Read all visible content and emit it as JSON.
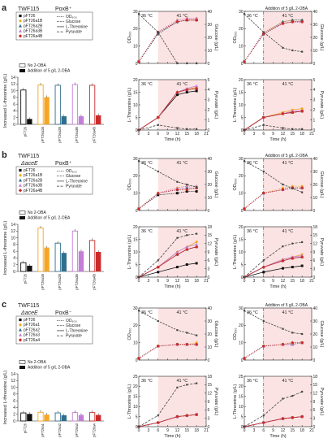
{
  "chart_data": [
    {
      "panel": "a",
      "strain_line1": "TWF115",
      "strain_line2": "",
      "phenotype": "PoxB⁺",
      "legend": {
        "strains": [
          "pFT26",
          "pFT26a1B",
          "pFT26a2B",
          "pFT26a3B",
          "pFT26a4B"
        ],
        "curves": [
          "OD600",
          "Glucose",
          "L-Threonine",
          "Pyruvate"
        ]
      },
      "bar_chart": {
        "type": "bar",
        "ylabel": "Increased L-threonine (g/L)",
        "ylim": [
          0,
          14
        ],
        "yticks": [
          0,
          2,
          4,
          6,
          8,
          10,
          12,
          14
        ],
        "legend": [
          "No 2-OBA",
          "Addition of 5 g/L 2-OBA"
        ],
        "categories": [
          "pFT26",
          "pFT26a1B",
          "pFT26a2B",
          "pFT26a3B",
          "pFT26a4B"
        ],
        "series": [
          {
            "name": "No 2-OBA",
            "values": [
              10.2,
              11.7,
              11.6,
              11.8,
              11.6
            ]
          },
          {
            "name": "Addition of 5 g/L 2-OBA",
            "values": [
              1.6,
              8.1,
              2.4,
              2.4,
              2.7
            ]
          }
        ]
      },
      "time_course": {
        "x": [
          0,
          6,
          12,
          15,
          18
        ],
        "xlim": [
          0,
          21
        ],
        "xticks": [
          0,
          3,
          6,
          9,
          12,
          15,
          18,
          21
        ],
        "xlabel": "Time (h)",
        "temp_labels": [
          "36 °C",
          "41 °C"
        ],
        "shift_time": 6,
        "annotation": "Addition of 5 g/L 2-OBA",
        "top": {
          "left_ylabel": "OD600",
          "left_ylim": [
            0,
            30
          ],
          "left_ticks": [
            0,
            10,
            20,
            30
          ],
          "right_ylabel": "Glucose (g/L)",
          "right_ylim": [
            0,
            40
          ],
          "right_ticks": [
            0,
            10,
            20,
            30,
            40
          ],
          "left_panel": {
            "od": [
              [
                1,
                17,
                24,
                25,
                25
              ],
              [
                1,
                18,
                25,
                26,
                26
              ],
              [
                1,
                17,
                24,
                25,
                25
              ],
              [
                1,
                18,
                25,
                26,
                26
              ],
              [
                1,
                18,
                24,
                25,
                25
              ]
            ],
            "glucose": [
              38,
              24,
              0,
              0,
              0
            ]
          },
          "right_panel": {
            "od": [
              [
                1,
                17,
                23,
                24,
                24
              ],
              [
                1,
                18,
                24,
                25,
                25
              ],
              [
                1,
                17,
                24,
                25,
                25
              ],
              [
                1,
                18,
                23,
                24,
                24
              ],
              [
                1,
                17,
                23,
                24,
                24
              ]
            ],
            "glucose": [
              38,
              24,
              12,
              10,
              9
            ]
          }
        },
        "bottom": {
          "left_ylabel": "L-Threonine (g/L)",
          "left_ylim": [
            0,
            20
          ],
          "left_ticks": [
            0,
            5,
            10,
            15,
            20
          ],
          "right_ylabel": "Pyruvate (g/L)",
          "right_ylim": [
            0,
            5
          ],
          "right_ticks": [
            0,
            1,
            2,
            3,
            4,
            5
          ],
          "left_panel": {
            "thr": [
              [
                0,
                5,
                14,
                15,
                15.5
              ],
              [
                0,
                5,
                15,
                16,
                17
              ],
              [
                0,
                5,
                15,
                16,
                16.5
              ],
              [
                0,
                5,
                15,
                16.5,
                17.5
              ],
              [
                0,
                5,
                15,
                16,
                16.5
              ]
            ],
            "pyr": [
              0,
              0.5,
              0.2,
              0.1,
              0.1
            ]
          },
          "right_panel": {
            "thr": [
              [
                0,
                5,
                6.5,
                7,
                7.5
              ],
              [
                0,
                5,
                7,
                8,
                8.5
              ],
              [
                0,
                5,
                6.5,
                7,
                7.5
              ],
              [
                0,
                5,
                6.5,
                7.5,
                7.5
              ],
              [
                0,
                5,
                6.5,
                7,
                7.5
              ]
            ],
            "pyr": [
              0,
              0.5,
              0.2,
              0.1,
              0.1
            ]
          }
        }
      }
    },
    {
      "panel": "b",
      "strain_line1": "TWF115",
      "strain_line2": "ΔaceE",
      "phenotype": "PoxB⁺",
      "legend": {
        "strains": [
          "pFT26",
          "pFT26a1B",
          "pFT26a2B",
          "pFT26a3B",
          "pFT26a4B"
        ],
        "curves": [
          "OD600",
          "Glucose",
          "L-Threonine",
          "Pyruvate"
        ]
      },
      "bar_chart": {
        "type": "bar",
        "ylabel": "Increased L-threonine (g/L)",
        "ylim": [
          0,
          14
        ],
        "yticks": [
          0,
          2,
          4,
          6,
          8,
          10,
          12,
          14
        ],
        "legend": [
          "No 2-OBA",
          "Addition of 5 g/L 2-OBA"
        ],
        "categories": [
          "pFT26",
          "pFT26a1B",
          "pFT26a2B",
          "pFT26a3B",
          "pFT26a4B"
        ],
        "series": [
          {
            "name": "No 2-OBA",
            "values": [
              2.6,
              12.9,
              8.4,
              12.0,
              9.2
            ]
          },
          {
            "name": "Addition of 5 g/L 2-OBA",
            "values": [
              1.7,
              7.1,
              5.5,
              6.0,
              5.8
            ]
          }
        ]
      },
      "time_course": {
        "x": [
          0,
          6,
          12,
          15,
          18
        ],
        "xlim": [
          0,
          21
        ],
        "xticks": [
          0,
          3,
          6,
          9,
          12,
          15,
          18,
          21
        ],
        "xlabel": "Time (h)",
        "temp_labels": [
          "36 °C",
          "41 °C"
        ],
        "shift_time": 6,
        "annotation": "Addition of 5 g/L 2-OBA",
        "top": {
          "left_ylabel": "OD600",
          "left_ylim": [
            0,
            30
          ],
          "left_ticks": [
            0,
            10,
            20,
            30
          ],
          "right_ylabel": "Glucose (g/L)",
          "right_ylim": [
            0,
            40
          ],
          "right_ticks": [
            0,
            10,
            20,
            30,
            40
          ],
          "left_panel": {
            "od": [
              [
                1,
                9,
                10,
                11,
                11
              ],
              [
                1,
                10,
                13,
                14,
                14
              ],
              [
                1,
                10,
                12,
                13,
                13
              ],
              [
                1,
                10,
                13,
                14,
                14
              ],
              [
                1,
                10,
                12,
                12,
                13
              ]
            ],
            "glucose": [
              38,
              30,
              22,
              20,
              18
            ]
          },
          "right_panel": {
            "od": [
              [
                1,
                10,
                12,
                13,
                13
              ],
              [
                1,
                10,
                13,
                14,
                14
              ],
              [
                1,
                10,
                12,
                13,
                13
              ],
              [
                1,
                10,
                12,
                13,
                13
              ],
              [
                1,
                10,
                12,
                13,
                13
              ]
            ],
            "glucose": [
              38,
              30,
              20,
              17,
              14
            ]
          }
        },
        "bottom": {
          "left_ylabel": "L-Threonine (g/L)",
          "left_ylim": [
            0,
            20
          ],
          "left_ticks": [
            0,
            5,
            10,
            15,
            20
          ],
          "right_ylabel": "Pyruvate (g/L)",
          "right_ylim": [
            0,
            18
          ],
          "right_ticks": [
            0,
            3,
            6,
            9,
            12,
            15,
            18
          ],
          "left_panel": {
            "thr": [
              [
                0,
                2,
                4,
                5,
                5.5
              ],
              [
                0,
                4,
                10,
                12,
                14
              ],
              [
                0,
                4,
                9,
                11,
                12
              ],
              [
                0,
                4,
                10,
                12,
                13
              ],
              [
                0,
                4,
                9,
                11,
                12
              ]
            ],
            "pyr": [
              0,
              6,
              14,
              15,
              15.5
            ]
          },
          "right_panel": {
            "thr": [
              [
                0,
                2,
                3.5,
                4,
                4.5
              ],
              [
                0,
                4,
                7,
                8,
                9
              ],
              [
                0,
                4,
                6.5,
                7.5,
                8
              ],
              [
                0,
                4,
                7,
                8,
                8.5
              ],
              [
                0,
                4,
                6.5,
                7.5,
                8
              ]
            ],
            "pyr": [
              0,
              6,
              11,
              12,
              12.5
            ]
          }
        }
      }
    },
    {
      "panel": "c",
      "strain_line1": "TWF115",
      "strain_line2": "ΔaceE",
      "phenotype": "PoxB⁻",
      "legend": {
        "strains": [
          "pFT26",
          "pFT26a1",
          "pFT26a2",
          "pFT26a3",
          "pFT26a4"
        ],
        "curves": [
          "OD600",
          "Glucose",
          "L-Threonine",
          "Pyruvate"
        ]
      },
      "bar_chart": {
        "type": "bar",
        "ylabel": "Increased L-threonine (g/L)",
        "ylim": [
          0,
          14
        ],
        "yticks": [
          0,
          2,
          4,
          6,
          8,
          10,
          12,
          14
        ],
        "legend": [
          "No 2-OBA",
          "Addition of 5 g/L 2-OBA"
        ],
        "categories": [
          "pFT26",
          "pFT26a1",
          "pFT26a2",
          "pFT26a3",
          "pFT26a4"
        ],
        "series": [
          {
            "name": "No 2-OBA",
            "values": [
              2.4,
              2.6,
              2.4,
              2.5,
              2.5
            ]
          },
          {
            "name": "Addition of 5 g/L 2-OBA",
            "values": [
              2.1,
              1.9,
              1.7,
              1.8,
              1.8
            ]
          }
        ]
      },
      "time_course": {
        "x": [
          0,
          6,
          12,
          15,
          18
        ],
        "xlim": [
          0,
          21
        ],
        "xticks": [
          0,
          3,
          6,
          9,
          12,
          15,
          18,
          21
        ],
        "xlabel": "Time (h)",
        "temp_labels": [
          "36 °C",
          "41 °C"
        ],
        "shift_time": 6,
        "annotation": "Addition of 5 g/L 2-OBA",
        "top": {
          "left_ylabel": "OD600",
          "left_ylim": [
            0,
            30
          ],
          "left_ticks": [
            0,
            10,
            20,
            30
          ],
          "right_ylabel": "Glucose (g/L)",
          "right_ylim": [
            0,
            40
          ],
          "right_ticks": [
            0,
            10,
            20,
            30,
            40
          ],
          "left_panel": {
            "od": [
              [
                1,
                8,
                9,
                9,
                9
              ],
              [
                1,
                8,
                9,
                9,
                10
              ],
              [
                1,
                8,
                9,
                9,
                9
              ],
              [
                1,
                8,
                9,
                9,
                9
              ],
              [
                1,
                8,
                9,
                9,
                9
              ]
            ],
            "glucose": [
              38,
              30,
              23,
              21,
              19
            ]
          },
          "right_panel": {
            "od": [
              [
                1,
                8,
                9,
                9,
                10
              ],
              [
                1,
                8,
                9,
                10,
                10
              ],
              [
                1,
                8,
                9,
                9,
                10
              ],
              [
                1,
                8,
                9,
                9,
                10
              ],
              [
                1,
                8,
                9,
                10,
                10
              ]
            ],
            "glucose": [
              38,
              30,
              24,
              21,
              20
            ]
          }
        },
        "bottom": {
          "left_ylabel": "L-Threonine (g/L)",
          "left_ylim": [
            0,
            25
          ],
          "left_ticks": [
            0,
            5,
            10,
            15,
            20,
            25
          ],
          "right_ylabel": "Pyruvate (g/L)",
          "right_ylim": [
            0,
            18
          ],
          "right_ticks": [
            0,
            3,
            6,
            9,
            12,
            15,
            18
          ],
          "left_panel": {
            "thr": [
              [
                0,
                2,
                5,
                5.5,
                6
              ],
              [
                0,
                2,
                5,
                5.5,
                6
              ],
              [
                0,
                2,
                5,
                5.5,
                6
              ],
              [
                0,
                2,
                5,
                5.5,
                6
              ],
              [
                0,
                2,
                5,
                5.5,
                6
              ]
            ],
            "pyr": [
              0,
              4,
              14,
              15,
              15.5
            ]
          },
          "right_panel": {
            "thr": [
              [
                0,
                2,
                4,
                4.5,
                5
              ],
              [
                0,
                2,
                4,
                4.5,
                5
              ],
              [
                0,
                2,
                4,
                4.5,
                5
              ],
              [
                0,
                2,
                4,
                4.5,
                5
              ],
              [
                0,
                2,
                4,
                4.5,
                5
              ]
            ],
            "pyr": [
              0,
              4,
              10,
              11,
              12.5
            ]
          }
        }
      }
    }
  ],
  "colors": {
    "strains": [
      "#111111",
      "#f5a623",
      "#2e6e8e",
      "#c37fd6",
      "#cc2a2a"
    ],
    "shade": "#fbe3e3",
    "temp_high": "#d62728",
    "shift_line": "#d62728"
  }
}
